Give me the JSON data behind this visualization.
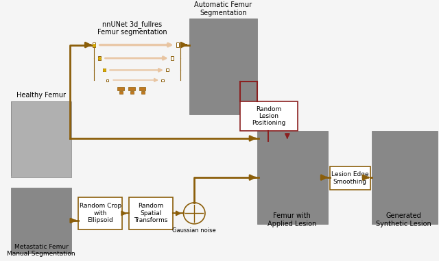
{
  "bg_color": "#f5f5f5",
  "brown": "#8B5E0A",
  "dark_red": "#8B2020",
  "light_brown": "#C4956A",
  "box_edge": "#8B5E0A",
  "box_face": "#ffffff",
  "red_box_edge": "#8B2020",
  "red_box_face": "#ffffff",
  "labels": {
    "healthy_femur": "Healthy Femur",
    "metastatic_femur": "Metastatic Femur\nManual Segmentation",
    "nnunet": "nnUNet 3d_fullres\nFemur segmentation",
    "auto_seg": "Automatic Femur\nSegmentation",
    "random_crop": "Random Crop\nwith\nEllipsoid",
    "random_spatial": "Random\nSpatial\nTransforms",
    "gaussian": "Gaussian noise",
    "random_lesion": "Random\nLesion\nPositioning",
    "lesion_edge": "Lesion Edge\nSmoothing",
    "femur_applied": "Femur with\nApplied Lesion",
    "generated": "Generated\nSynthetic Lesion"
  },
  "unet_diagram": {
    "levels": 4,
    "color_main": "#D2956A",
    "color_skip": "#E8C4A0",
    "color_yellow": "#FFD700",
    "color_orange": "#CC7700"
  }
}
